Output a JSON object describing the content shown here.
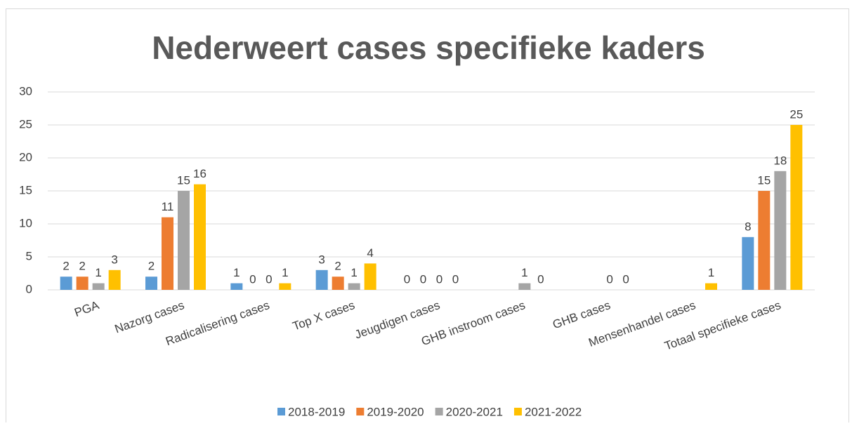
{
  "chart_data": {
    "type": "bar",
    "title": "Nederweert cases specifieke kaders",
    "categories": [
      "PGA",
      "Nazorg cases",
      "Radicalisering cases",
      "Top X cases",
      "Jeugdigen cases",
      "GHB instroom cases",
      "GHB cases",
      "Mensenhandel cases",
      "Totaal specifieke cases"
    ],
    "series": [
      {
        "name": "2018-2019",
        "color": "#5b9bd5",
        "values": [
          2,
          2,
          1,
          3,
          0,
          null,
          null,
          null,
          8
        ]
      },
      {
        "name": "2019-2020",
        "color": "#ed7d31",
        "values": [
          2,
          11,
          0,
          2,
          0,
          null,
          null,
          null,
          15
        ]
      },
      {
        "name": "2020-2021",
        "color": "#a5a5a5",
        "values": [
          1,
          15,
          0,
          1,
          0,
          1,
          0,
          null,
          18
        ]
      },
      {
        "name": "2021-2022",
        "color": "#ffc000",
        "values": [
          3,
          16,
          1,
          4,
          0,
          0,
          0,
          1,
          25
        ]
      }
    ],
    "ylim": [
      0,
      30
    ],
    "yticks": [
      0,
      5,
      10,
      15,
      20,
      25,
      30
    ],
    "grid": true,
    "legend": "bottom"
  }
}
